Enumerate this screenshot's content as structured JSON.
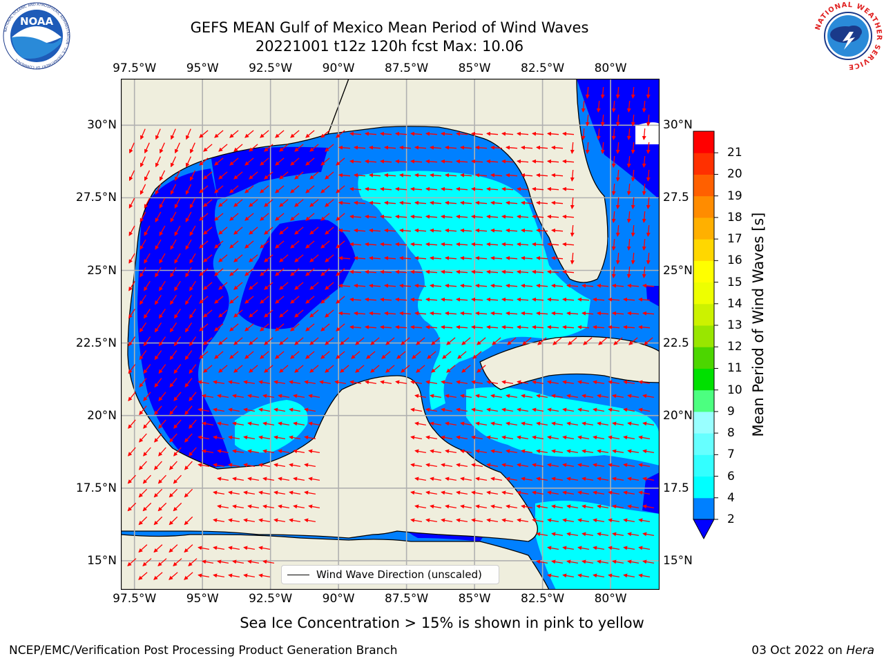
{
  "title": {
    "line1": "GEFS MEAN Gulf of Mexico Mean Period of Wind Waves",
    "line2": "20221001 t12z 120h fcst   Max: 10.06"
  },
  "logos": {
    "left": {
      "icon": "noaa-logo",
      "text": "NOAA",
      "ring_text": "NATIONAL OCEANIC AND ATMOSPHERIC ADMINISTRATION · U.S. DEPARTMENT OF COMMERCE"
    },
    "right": {
      "icon": "nws-logo",
      "ring_text": "NATIONAL WEATHER SERVICE"
    }
  },
  "map": {
    "type": "contour-map-with-vectors",
    "region": "Gulf of Mexico",
    "longitude_ticks": [
      "97.5°W",
      "95°W",
      "92.5°W",
      "90°W",
      "87.5°W",
      "85°W",
      "82.5°W",
      "80°W"
    ],
    "latitude_ticks_left": [
      "30°N",
      "27.5°N",
      "25°N",
      "22.5°N",
      "20°N",
      "17.5°N",
      "15°N"
    ],
    "latitude_ticks_right": [
      "30°N",
      "27.5",
      "25°N",
      "22.5",
      "20°N",
      "17.5",
      "15°N"
    ],
    "lon_range": [
      -98,
      -78.2
    ],
    "lat_range": [
      14.0,
      31.6
    ],
    "grid": true,
    "land_color": "#efeedd",
    "arrow_color": "#ff0000",
    "legend_label": "Wind Wave Direction (unscaled)",
    "legend_position": "bottom-center"
  },
  "colorbar": {
    "label": "Mean Period of Wind Waves [s]",
    "levels": [
      2,
      4,
      6,
      7,
      8,
      9,
      10,
      11,
      12,
      13,
      14,
      15,
      16,
      17,
      18,
      19,
      20,
      21
    ],
    "tick_labels": [
      "2",
      "4",
      "6",
      "7",
      "8",
      "9",
      "10",
      "11",
      "12",
      "13",
      "14",
      "15",
      "16",
      "17",
      "18",
      "19",
      "20",
      "21"
    ],
    "colors": [
      "#0080ff",
      "#00ffff",
      "#33ffff",
      "#66ffff",
      "#99ffff",
      "#4cff80",
      "#00e000",
      "#4cd600",
      "#99e600",
      "#ccf200",
      "#eeff00",
      "#ffff00",
      "#ffd700",
      "#ffb000",
      "#ff8c00",
      "#ff6000",
      "#ff3000",
      "#ff0000"
    ],
    "extend_below_color": "#0000ff"
  },
  "ice_note": "Sea Ice Concentration > 15% is shown in pink to yellow",
  "footer": {
    "left": "NCEP/EMC/Verification Post Processing Product Generation Branch",
    "right_date": "03 Oct 2022 on ",
    "right_host": "Hera"
  }
}
